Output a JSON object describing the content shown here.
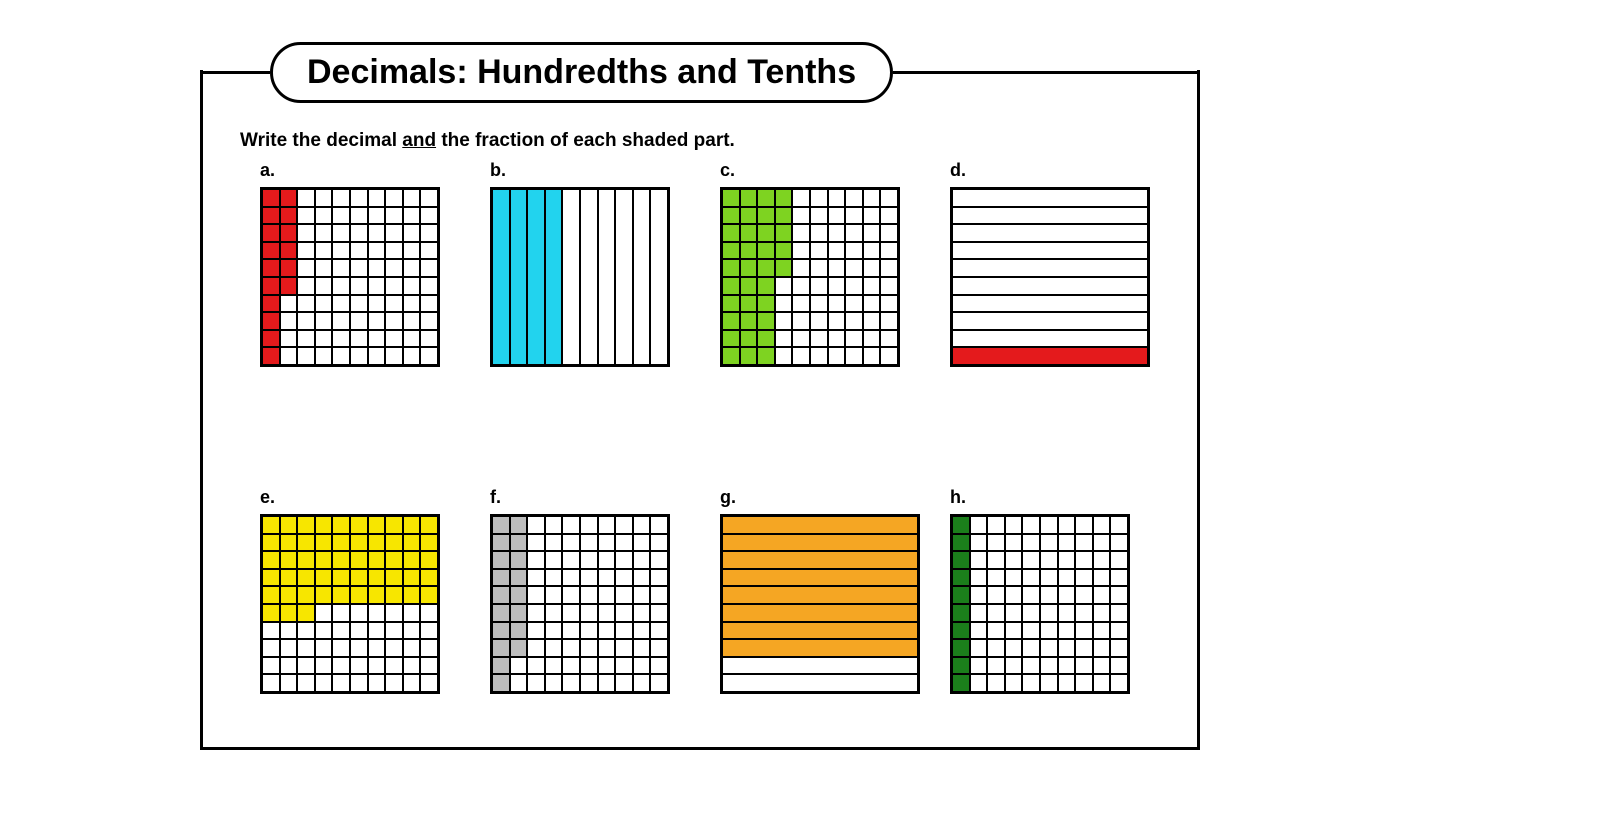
{
  "title": "Decimals: Hundredths and Tenths",
  "instruction_pre": "Write the decimal ",
  "instruction_underline": "and",
  "instruction_post": " the fraction of each shaded part.",
  "colors": {
    "red": "#e41a1c",
    "cyan": "#22d3ee",
    "lime": "#7ed321",
    "yellow": "#f7e600",
    "gray": "#bdbdbd",
    "orange": "#f5a623",
    "dgreen": "#1b7f1b",
    "white": "#ffffff"
  },
  "items": [
    {
      "label": "a.",
      "type": "hundredths",
      "shaded_count": 16,
      "color": "red",
      "pattern": "col_major",
      "extra": {
        "rows_in_partial_col": 6
      }
    },
    {
      "label": "b.",
      "type": "tenths_cols",
      "shaded_count": 4,
      "color": "cyan"
    },
    {
      "label": "c.",
      "type": "hundredths",
      "shaded_count": 35,
      "color": "lime",
      "pattern": "col_major",
      "extra": {
        "rows_in_partial_col": 5
      }
    },
    {
      "label": "d.",
      "type": "tenths_rows",
      "shaded_count": 1,
      "color": "red",
      "position": "bottom"
    },
    {
      "label": "e.",
      "type": "hundredths",
      "shaded_count": 53,
      "color": "yellow",
      "pattern": "row_major"
    },
    {
      "label": "f.",
      "type": "hundredths",
      "shaded_count": 18,
      "color": "gray",
      "pattern": "col_major",
      "extra": {
        "rows_in_partial_col": 8
      }
    },
    {
      "label": "g.",
      "type": "tenths_rows",
      "shaded_count": 8,
      "color": "orange",
      "position": "top"
    },
    {
      "label": "h.",
      "type": "hundredths",
      "shaded_count": 10,
      "color": "dgreen",
      "pattern": "col_major",
      "extra": {
        "rows_in_partial_col": 0
      }
    }
  ]
}
